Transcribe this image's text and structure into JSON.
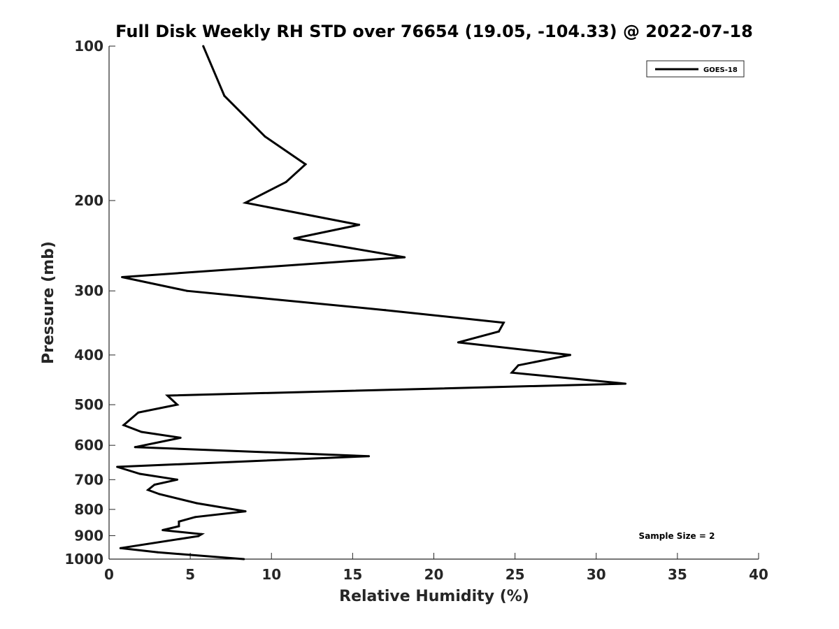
{
  "chart_data": {
    "type": "line",
    "title": "Full Disk Weekly RH STD over 76654 (19.05, -104.33) @ 2022-07-18",
    "xlabel": "Relative Humidity (%)",
    "ylabel": "Pressure (mb)",
    "xlim": [
      0,
      40
    ],
    "ylim": [
      100,
      1000
    ],
    "y_scale": "log",
    "y_reversed": true,
    "x_ticks": [
      "0",
      "5",
      "10",
      "15",
      "20",
      "25",
      "30",
      "35",
      "40"
    ],
    "y_ticks": [
      "100",
      "200",
      "300",
      "400",
      "500",
      "600",
      "700",
      "800",
      "900",
      "1000"
    ],
    "grid": false,
    "legend_position": "top-right",
    "annotation": "Sample Size = 2",
    "series": [
      {
        "name": "GOES-18",
        "color": "#000000",
        "points": [
          [
            5.8,
            100
          ],
          [
            7.1,
            125
          ],
          [
            9.6,
            150
          ],
          [
            12.1,
            170
          ],
          [
            10.9,
            184
          ],
          [
            8.4,
            202
          ],
          [
            15.4,
            223
          ],
          [
            11.4,
            237
          ],
          [
            18.2,
            258
          ],
          [
            0.8,
            282
          ],
          [
            4.8,
            300
          ],
          [
            17.0,
            327
          ],
          [
            24.3,
            346
          ],
          [
            24.0,
            360
          ],
          [
            21.5,
            378
          ],
          [
            28.4,
            400
          ],
          [
            25.2,
            419
          ],
          [
            24.8,
            433
          ],
          [
            31.8,
            455
          ],
          [
            3.6,
            480
          ],
          [
            4.2,
            500
          ],
          [
            1.8,
            518
          ],
          [
            0.9,
            548
          ],
          [
            2.0,
            565
          ],
          [
            4.4,
            580
          ],
          [
            1.6,
            605
          ],
          [
            16.0,
            630
          ],
          [
            0.5,
            661
          ],
          [
            1.9,
            682
          ],
          [
            4.2,
            700
          ],
          [
            2.8,
            716
          ],
          [
            2.4,
            733
          ],
          [
            3.1,
            747
          ],
          [
            5.4,
            778
          ],
          [
            8.4,
            807
          ],
          [
            5.3,
            828
          ],
          [
            4.3,
            845
          ],
          [
            4.3,
            863
          ],
          [
            3.3,
            878
          ],
          [
            5.7,
            894
          ],
          [
            5.5,
            902
          ],
          [
            0.7,
            952
          ],
          [
            3.0,
            970
          ],
          [
            8.3,
            1000
          ]
        ]
      }
    ]
  }
}
